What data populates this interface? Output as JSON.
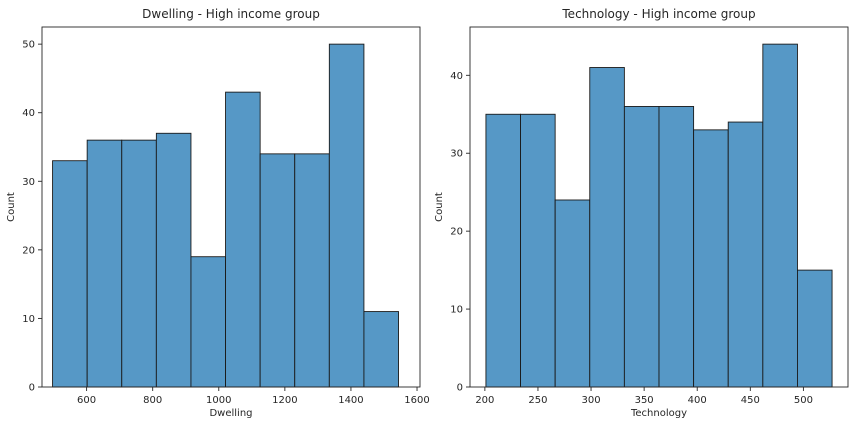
{
  "chart_data": [
    {
      "type": "bar",
      "title": "Dwelling - High income group",
      "xlabel": "Dwelling",
      "ylabel": "Count",
      "bin_edges": [
        497,
        601.7,
        706.4,
        811.1,
        915.8,
        1020.5,
        1125.2,
        1229.9,
        1334.6,
        1439.3,
        1544
      ],
      "values": [
        33,
        36,
        36,
        37,
        19,
        43,
        34,
        34,
        50,
        11
      ],
      "xlim": [
        465,
        1609
      ],
      "ylim": [
        0,
        52.5
      ],
      "xticks": [
        600,
        800,
        1000,
        1200,
        1400,
        1600
      ],
      "yticks": [
        0,
        10,
        20,
        30,
        40,
        50
      ],
      "grid": false,
      "bar_color": "#5698c6"
    },
    {
      "type": "bar",
      "title": "Technology - High income group",
      "xlabel": "Technology",
      "ylabel": "Count",
      "bin_edges": [
        201,
        233.6,
        266.2,
        298.8,
        331.4,
        364,
        396.6,
        429.2,
        461.8,
        494.4,
        527
      ],
      "values": [
        35,
        35,
        24,
        41,
        36,
        36,
        33,
        34,
        44,
        15
      ],
      "xlim": [
        186,
        542
      ],
      "ylim": [
        0,
        46.2
      ],
      "xticks": [
        200,
        250,
        300,
        350,
        400,
        450,
        500
      ],
      "yticks": [
        0,
        10,
        20,
        30,
        40
      ],
      "grid": false,
      "bar_color": "#5698c6"
    }
  ]
}
